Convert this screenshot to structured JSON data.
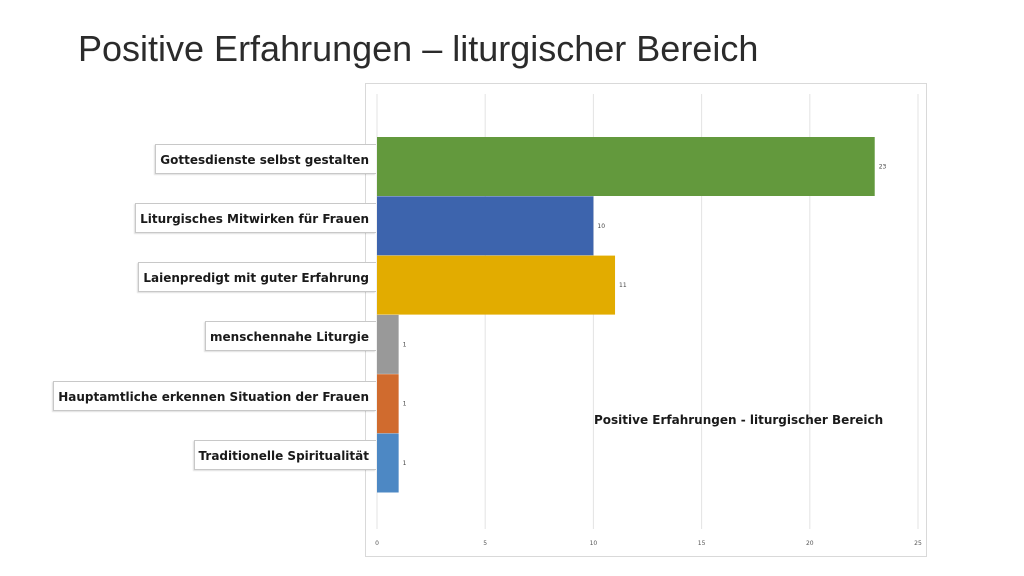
{
  "slide": {
    "title": "Positive Erfahrungen – liturgischer Bereich"
  },
  "chart_data": {
    "type": "bar",
    "orientation": "horizontal",
    "title": "Positive Erfahrungen - liturgischer Bereich",
    "categories": [
      "Gottesdienste selbst gestalten",
      "Liturgisches Mitwirken für Frauen",
      "Laienpredigt mit guter Erfahrung",
      "menschennahe Liturgie",
      "Hauptamtliche erkennen Situation der Frauen",
      "Traditionelle Spiritualität"
    ],
    "values": [
      23,
      10,
      11,
      1,
      1,
      1
    ],
    "data_labels": [
      "23",
      "10",
      "11",
      "1",
      "1",
      "1"
    ],
    "colors": [
      "#63993d",
      "#3d64ad",
      "#e2ac00",
      "#999999",
      "#d06b2e",
      "#4d88c4"
    ],
    "xlim": [
      0,
      25
    ],
    "x_ticks": [
      "0",
      "5",
      "10",
      "15",
      "20",
      "25"
    ],
    "grid": true,
    "legend": "none"
  }
}
